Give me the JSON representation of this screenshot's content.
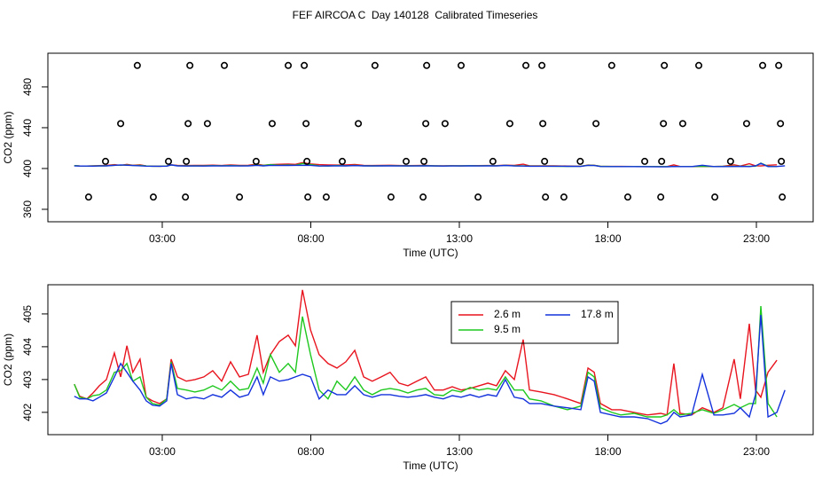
{
  "chart_data": [
    {
      "type": "scatter",
      "title": "FEF AIRCOA C  Day 140128  Calibrated Timeseries",
      "xlabel": "Time (UTC)",
      "ylabel": "CO2 (ppm)",
      "color": "#000000",
      "x": [
        2.16,
        3.93,
        5.09,
        7.24,
        7.78,
        10.16,
        11.9,
        13.06,
        15.24,
        15.78,
        18.13,
        19.9,
        21.06,
        23.21,
        23.75,
        1.6,
        3.87,
        4.52,
        6.7,
        7.84,
        9.6,
        11.87,
        12.52,
        14.7,
        15.81,
        17.6,
        19.87,
        20.52,
        22.67,
        23.81,
        1.09,
        3.21,
        3.81,
        6.16,
        7.87,
        9.06,
        11.21,
        11.81,
        14.13,
        15.87,
        17.07,
        19.24,
        19.81,
        22.13,
        23.84,
        0.52,
        2.7,
        3.78,
        5.6,
        7.9,
        8.52,
        10.7,
        11.78,
        13.63,
        15.9,
        16.52,
        18.67,
        19.78,
        21.6,
        23.87
      ],
      "y": [
        501,
        501,
        501,
        501,
        501,
        501,
        501,
        501,
        501,
        501,
        501,
        501,
        501,
        501,
        501,
        444,
        444,
        444,
        444,
        444,
        444,
        444,
        444,
        444,
        444,
        444,
        444,
        444,
        444,
        444,
        407,
        407,
        407,
        407,
        407,
        407,
        407,
        407,
        407,
        407,
        407,
        407,
        407,
        407,
        407,
        372,
        372,
        372,
        372,
        372,
        372,
        372,
        372,
        372,
        372,
        372,
        372,
        372,
        372,
        372
      ],
      "xlim": [
        -0.85,
        24.91
      ],
      "xticks": [
        {
          "value": 3,
          "label": "03:00"
        },
        {
          "value": 8,
          "label": "08:00"
        },
        {
          "value": 13,
          "label": "13:00"
        },
        {
          "value": 18,
          "label": "18:00"
        },
        {
          "value": 23,
          "label": "23:00"
        }
      ],
      "ylim": [
        347.8,
        513.0
      ],
      "yticks": [
        360,
        400,
        440,
        480
      ]
    },
    {
      "type": "line",
      "xlabel": "Time (UTC)",
      "ylabel": "CO2 (ppm)",
      "legend": "top-center",
      "x": [
        0.04,
        0.22,
        0.46,
        0.67,
        0.88,
        1.12,
        1.39,
        1.6,
        1.81,
        2.01,
        2.25,
        2.46,
        2.67,
        2.91,
        3.15,
        3.3,
        3.51,
        3.81,
        4.1,
        4.4,
        4.7,
        5.0,
        5.3,
        5.6,
        5.9,
        6.19,
        6.4,
        6.64,
        6.94,
        7.24,
        7.48,
        7.72,
        7.99,
        8.28,
        8.58,
        8.88,
        9.18,
        9.48,
        9.78,
        10.07,
        10.37,
        10.67,
        10.97,
        11.27,
        11.57,
        11.87,
        12.16,
        12.46,
        12.76,
        13.06,
        13.36,
        13.66,
        13.96,
        14.25,
        14.55,
        14.85,
        15.15,
        15.36,
        15.75,
        16.19,
        16.64,
        17.09,
        17.33,
        17.54,
        17.75,
        18.13,
        18.43,
        18.88,
        19.33,
        19.78,
        19.99,
        20.22,
        20.43,
        20.82,
        21.18,
        21.57,
        21.87,
        22.25,
        22.46,
        22.76,
        22.97,
        23.15,
        23.39,
        23.69,
        23.96
      ],
      "series": [
        {
          "name": "2.6 m",
          "color": "#e8141e",
          "values": [
            402.86,
            402.49,
            402.41,
            402.59,
            402.81,
            403.0,
            403.81,
            403.08,
            404.03,
            403.22,
            403.62,
            402.46,
            402.35,
            402.27,
            402.41,
            403.62,
            403.08,
            402.95,
            403.0,
            403.08,
            403.27,
            402.95,
            403.54,
            403.08,
            403.16,
            404.35,
            403.22,
            403.76,
            404.16,
            404.35,
            404.03,
            405.73,
            404.51,
            403.76,
            403.49,
            403.35,
            403.54,
            403.89,
            403.08,
            402.95,
            403.08,
            403.22,
            402.89,
            402.81,
            402.95,
            403.08,
            402.68,
            402.68,
            402.78,
            402.68,
            402.73,
            402.81,
            402.89,
            402.81,
            403.27,
            403.0,
            404.22,
            402.68,
            402.62,
            402.54,
            402.41,
            402.27,
            403.35,
            403.22,
            402.27,
            402.08,
            402.08,
            402.0,
            401.92,
            401.97,
            401.92,
            403.49,
            401.97,
            401.92,
            402.14,
            402.0,
            402.14,
            403.62,
            402.41,
            404.7,
            402.68,
            402.46,
            403.22,
            403.59,
            null
          ]
        },
        {
          "name": "9.5 m",
          "color": "#1ec81e",
          "values": [
            402.86,
            402.46,
            402.41,
            402.51,
            402.54,
            402.68,
            403.22,
            403.27,
            403.49,
            402.95,
            403.08,
            402.46,
            402.27,
            402.22,
            402.41,
            403.54,
            402.73,
            402.68,
            402.62,
            402.68,
            402.81,
            402.68,
            402.95,
            402.68,
            402.73,
            403.35,
            402.89,
            403.76,
            403.22,
            403.49,
            403.22,
            404.92,
            403.76,
            402.68,
            402.41,
            402.95,
            402.68,
            403.08,
            402.68,
            402.54,
            402.68,
            402.73,
            402.68,
            402.59,
            402.68,
            402.73,
            402.54,
            402.51,
            402.68,
            402.62,
            402.76,
            402.68,
            402.73,
            402.68,
            403.08,
            402.68,
            402.68,
            402.41,
            402.35,
            402.19,
            402.08,
            402.19,
            403.22,
            403.08,
            402.14,
            402.0,
            401.92,
            401.97,
            401.86,
            401.86,
            401.92,
            402.08,
            401.92,
            401.97,
            402.08,
            401.97,
            402.08,
            402.24,
            402.14,
            402.27,
            402.27,
            405.24,
            402.27,
            401.86,
            null
          ]
        },
        {
          "name": "17.8 m",
          "color": "#1432dc",
          "values": [
            402.49,
            402.41,
            402.41,
            402.35,
            402.46,
            402.59,
            403.08,
            403.49,
            403.22,
            402.95,
            402.68,
            402.35,
            402.22,
            402.19,
            402.35,
            403.49,
            402.54,
            402.41,
            402.46,
            402.41,
            402.54,
            402.46,
            402.68,
            402.46,
            402.54,
            403.08,
            402.54,
            403.08,
            402.95,
            403.0,
            403.08,
            403.16,
            403.08,
            402.41,
            402.68,
            402.54,
            402.54,
            402.81,
            402.54,
            402.46,
            402.54,
            402.54,
            402.49,
            402.46,
            402.49,
            402.54,
            402.46,
            402.41,
            402.51,
            402.46,
            402.54,
            402.46,
            402.54,
            402.49,
            403.0,
            402.46,
            402.41,
            402.27,
            402.27,
            402.19,
            402.14,
            402.08,
            403.08,
            402.95,
            402.0,
            401.92,
            401.86,
            401.86,
            401.81,
            401.65,
            401.73,
            402.0,
            401.86,
            401.92,
            403.16,
            401.92,
            401.92,
            401.97,
            402.14,
            401.86,
            402.54,
            404.97,
            401.86,
            402.0,
            402.68
          ]
        }
      ],
      "xlim": [
        -0.85,
        24.91
      ],
      "xticks": [
        {
          "value": 3,
          "label": "03:00"
        },
        {
          "value": 8,
          "label": "08:00"
        },
        {
          "value": 13,
          "label": "13:00"
        },
        {
          "value": 18,
          "label": "18:00"
        },
        {
          "value": 23,
          "label": "23:00"
        }
      ],
      "ylim": [
        401.32,
        405.89
      ],
      "yticks": [
        402,
        403,
        404,
        405
      ]
    }
  ]
}
